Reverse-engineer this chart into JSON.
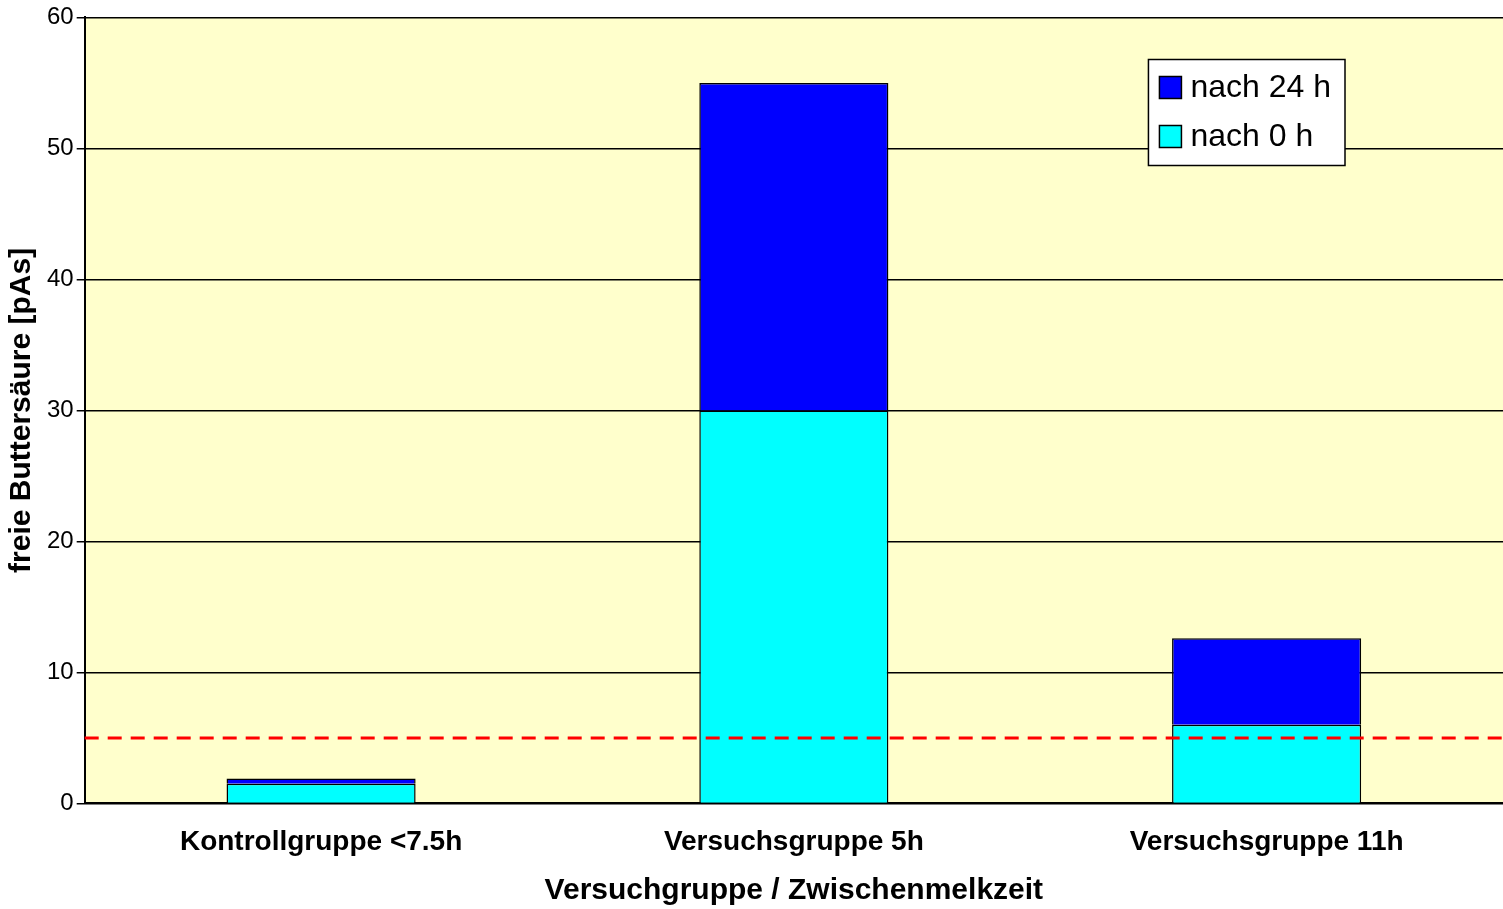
{
  "chart_data": {
    "type": "bar",
    "stacked": true,
    "xlabel": "Versuchgruppe / Zwischenmelkzeit",
    "ylabel": "freie Buttersäure [pAs]",
    "categories": [
      "Kontrollgruppe <7.5h",
      "Versuchsgruppe 5h",
      "Versuchsgruppe 11h"
    ],
    "series": [
      {
        "name": "nach 0 h",
        "color": "#00ffff",
        "values": [
          1.5,
          30,
          6.0
        ]
      },
      {
        "name": "nach 24 h",
        "color": "#0000ff",
        "values": [
          0.4,
          25,
          6.6
        ]
      }
    ],
    "ylim": [
      0,
      60
    ],
    "yticks": [
      0,
      10,
      20,
      30,
      40,
      50,
      60
    ],
    "grid": "y",
    "legend": "top right",
    "ref_lines": [
      {
        "axis": "y",
        "value": 5,
        "color": "#ff0000",
        "line_style": "dashed"
      }
    ]
  }
}
